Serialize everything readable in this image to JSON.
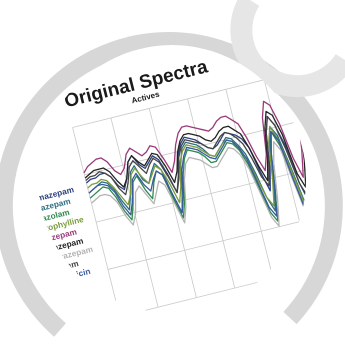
{
  "colors": {
    "background": "#ffffff",
    "frame_ring": "#d7d7d7",
    "grid": "#c9c9c9",
    "title": "#1a1a1a"
  },
  "chart_data": {
    "type": "line",
    "title": "Original Spectra",
    "subtitle": "Actives",
    "xlabel": "",
    "ylabel": "",
    "grid": true,
    "legend_position": "left",
    "x": [
      0,
      1,
      2,
      3,
      4,
      5,
      6,
      7,
      8,
      9,
      10,
      11,
      12,
      13,
      14,
      15,
      16,
      17,
      18,
      19,
      20,
      21,
      22,
      23,
      24,
      25,
      26,
      27,
      28,
      29,
      30,
      31,
      32,
      33,
      34,
      35,
      36,
      37,
      38,
      39,
      40,
      41,
      42,
      43,
      44,
      45,
      46,
      47
    ],
    "ylim": [
      0.25,
      1.0
    ],
    "series": [
      {
        "name": "Bromazepam",
        "color": "#2a3f7e",
        "values": [
          0.78,
          0.79,
          0.79,
          0.8,
          0.8,
          0.78,
          0.74,
          0.72,
          0.76,
          0.82,
          0.84,
          0.8,
          0.78,
          0.8,
          0.82,
          0.8,
          0.74,
          0.66,
          0.72,
          0.8,
          0.84,
          0.86,
          0.85,
          0.84,
          0.82,
          0.8,
          0.79,
          0.8,
          0.82,
          0.84,
          0.83,
          0.82,
          0.8,
          0.76,
          0.66,
          0.58,
          0.66,
          0.8,
          0.86,
          0.82,
          0.74,
          0.58,
          0.5,
          0.62,
          0.78,
          0.82,
          0.74,
          0.6
        ]
      },
      {
        "name": "Flurazepam",
        "color": "#2e6e82",
        "values": [
          0.74,
          0.75,
          0.76,
          0.77,
          0.76,
          0.73,
          0.68,
          0.64,
          0.7,
          0.78,
          0.8,
          0.74,
          0.72,
          0.76,
          0.79,
          0.76,
          0.66,
          0.58,
          0.66,
          0.76,
          0.82,
          0.84,
          0.83,
          0.82,
          0.8,
          0.77,
          0.76,
          0.78,
          0.8,
          0.82,
          0.81,
          0.78,
          0.74,
          0.66,
          0.56,
          0.5,
          0.6,
          0.74,
          0.82,
          0.78,
          0.66,
          0.52,
          0.46,
          0.58,
          0.72,
          0.78,
          0.68,
          0.56
        ]
      },
      {
        "name": "Midazolam",
        "color": "#2f8a4e",
        "values": [
          0.72,
          0.73,
          0.74,
          0.75,
          0.74,
          0.7,
          0.64,
          0.6,
          0.66,
          0.74,
          0.76,
          0.7,
          0.66,
          0.72,
          0.76,
          0.74,
          0.64,
          0.56,
          0.62,
          0.72,
          0.78,
          0.81,
          0.8,
          0.79,
          0.77,
          0.74,
          0.74,
          0.76,
          0.78,
          0.8,
          0.79,
          0.76,
          0.7,
          0.6,
          0.5,
          0.46,
          0.58,
          0.72,
          0.8,
          0.74,
          0.6,
          0.46,
          0.42,
          0.56,
          0.7,
          0.74,
          0.62,
          0.5
        ]
      },
      {
        "name": "Acetophylline",
        "color": "#7a9c3e",
        "values": [
          0.76,
          0.77,
          0.77,
          0.78,
          0.77,
          0.74,
          0.7,
          0.66,
          0.7,
          0.77,
          0.79,
          0.75,
          0.72,
          0.75,
          0.78,
          0.76,
          0.7,
          0.62,
          0.68,
          0.77,
          0.81,
          0.83,
          0.82,
          0.81,
          0.79,
          0.77,
          0.76,
          0.78,
          0.8,
          0.81,
          0.8,
          0.77,
          0.72,
          0.64,
          0.56,
          0.52,
          0.62,
          0.76,
          0.82,
          0.76,
          0.64,
          0.5,
          0.44,
          0.56,
          0.7,
          0.76,
          0.66,
          0.54
        ]
      },
      {
        "name": "Nitrazepam",
        "color": "#9a3a7a",
        "values": [
          0.82,
          0.84,
          0.85,
          0.86,
          0.86,
          0.84,
          0.8,
          0.78,
          0.8,
          0.85,
          0.87,
          0.85,
          0.83,
          0.84,
          0.86,
          0.85,
          0.8,
          0.74,
          0.78,
          0.84,
          0.88,
          0.9,
          0.9,
          0.89,
          0.88,
          0.87,
          0.86,
          0.87,
          0.89,
          0.9,
          0.9,
          0.88,
          0.86,
          0.8,
          0.72,
          0.66,
          0.72,
          0.86,
          0.92,
          0.9,
          0.82,
          0.68,
          0.6,
          0.7,
          0.84,
          0.88,
          0.8,
          0.68
        ]
      },
      {
        "name": "Clonazepam",
        "color": "#222222",
        "values": [
          0.8,
          0.81,
          0.82,
          0.82,
          0.82,
          0.8,
          0.76,
          0.73,
          0.76,
          0.82,
          0.84,
          0.81,
          0.79,
          0.81,
          0.83,
          0.82,
          0.77,
          0.7,
          0.74,
          0.81,
          0.85,
          0.87,
          0.87,
          0.86,
          0.85,
          0.83,
          0.82,
          0.83,
          0.85,
          0.86,
          0.86,
          0.84,
          0.82,
          0.76,
          0.68,
          0.62,
          0.7,
          0.82,
          0.88,
          0.86,
          0.78,
          0.62,
          0.56,
          0.66,
          0.8,
          0.84,
          0.76,
          0.64
        ]
      },
      {
        "name": "Flunitrazepam",
        "color": "#b3b3b3",
        "values": [
          0.7,
          0.71,
          0.72,
          0.72,
          0.71,
          0.68,
          0.62,
          0.58,
          0.62,
          0.7,
          0.72,
          0.68,
          0.64,
          0.68,
          0.72,
          0.7,
          0.62,
          0.54,
          0.6,
          0.7,
          0.76,
          0.78,
          0.77,
          0.76,
          0.74,
          0.72,
          0.72,
          0.74,
          0.76,
          0.78,
          0.77,
          0.74,
          0.68,
          0.58,
          0.48,
          0.44,
          0.54,
          0.68,
          0.76,
          0.72,
          0.58,
          0.44,
          0.38,
          0.5,
          0.66,
          0.72,
          0.6,
          0.48
        ]
      },
      {
        "name": "Diazepam",
        "color": "#444444",
        "values": [
          0.79,
          0.8,
          0.8,
          0.81,
          0.8,
          0.78,
          0.73,
          0.7,
          0.74,
          0.8,
          0.82,
          0.79,
          0.76,
          0.79,
          0.81,
          0.79,
          0.73,
          0.66,
          0.71,
          0.79,
          0.83,
          0.85,
          0.84,
          0.83,
          0.82,
          0.8,
          0.79,
          0.81,
          0.83,
          0.84,
          0.83,
          0.81,
          0.78,
          0.72,
          0.64,
          0.6,
          0.68,
          0.8,
          0.86,
          0.82,
          0.72,
          0.58,
          0.52,
          0.62,
          0.76,
          0.8,
          0.7,
          0.58
        ]
      },
      {
        "name": "Thyrothricin",
        "color": "#3a5a9e",
        "values": [
          0.74,
          0.75,
          0.76,
          0.76,
          0.75,
          0.72,
          0.66,
          0.62,
          0.67,
          0.75,
          0.77,
          0.72,
          0.69,
          0.73,
          0.76,
          0.74,
          0.66,
          0.58,
          0.64,
          0.74,
          0.79,
          0.82,
          0.81,
          0.8,
          0.78,
          0.76,
          0.75,
          0.77,
          0.79,
          0.81,
          0.8,
          0.77,
          0.72,
          0.62,
          0.52,
          0.48,
          0.58,
          0.72,
          0.8,
          0.76,
          0.6,
          0.46,
          0.4,
          0.52,
          0.68,
          0.74,
          0.62,
          0.5
        ]
      }
    ],
    "legend_entries": [
      "Bromazepam",
      "Flurazepam",
      "Midazolam",
      "Acetophylline",
      "Nitrazepam",
      "Clonazepam",
      "Flunitrazepam",
      "Diazepam",
      "Thyrothricin"
    ]
  }
}
